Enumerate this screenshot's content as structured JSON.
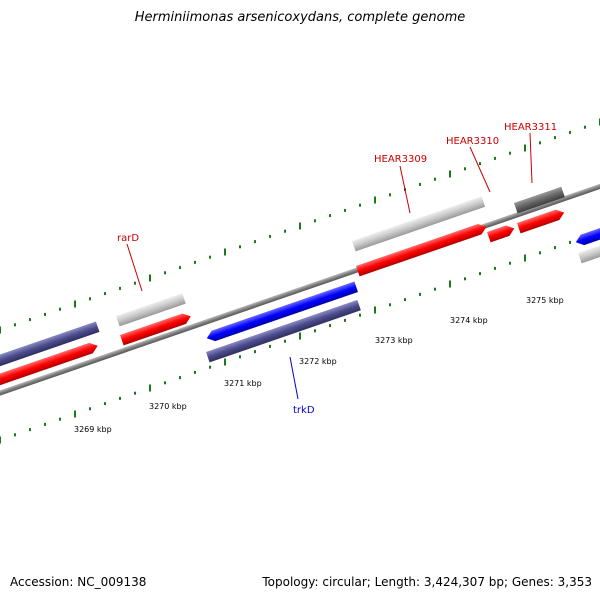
{
  "title": "Herminiimonas arsenicoxydans, complete genome",
  "footer": {
    "accession": "Accession: NC_009138",
    "stats": "Topology: circular; Length: 3,424,307 bp; Genes: 3,353"
  },
  "colors": {
    "background": "#ffffff",
    "backbone": "#808080",
    "tick": "#1a7a1a",
    "forward_cds": "#ff0000",
    "reverse_cds": "#0000ff",
    "forward_cog": "#c0c0c0",
    "reverse_cog": "#4b4b8c",
    "forward_label": "#cc0000",
    "reverse_label": "#0000cc"
  },
  "scale": {
    "upper_labels": [
      "3275 kbp",
      "3274 kbp",
      "3273 kbp",
      "3272 kbp"
    ],
    "lower_labels": [
      "3271 kbp",
      "3270 kbp",
      "3269 kbp"
    ]
  },
  "genes": [
    {
      "name": "rarD",
      "strand": "forward"
    },
    {
      "name": "HEAR3309",
      "strand": "forward"
    },
    {
      "name": "HEAR3310",
      "strand": "forward"
    },
    {
      "name": "HEAR3311",
      "strand": "forward"
    },
    {
      "name": "trkD",
      "strand": "reverse"
    }
  ]
}
